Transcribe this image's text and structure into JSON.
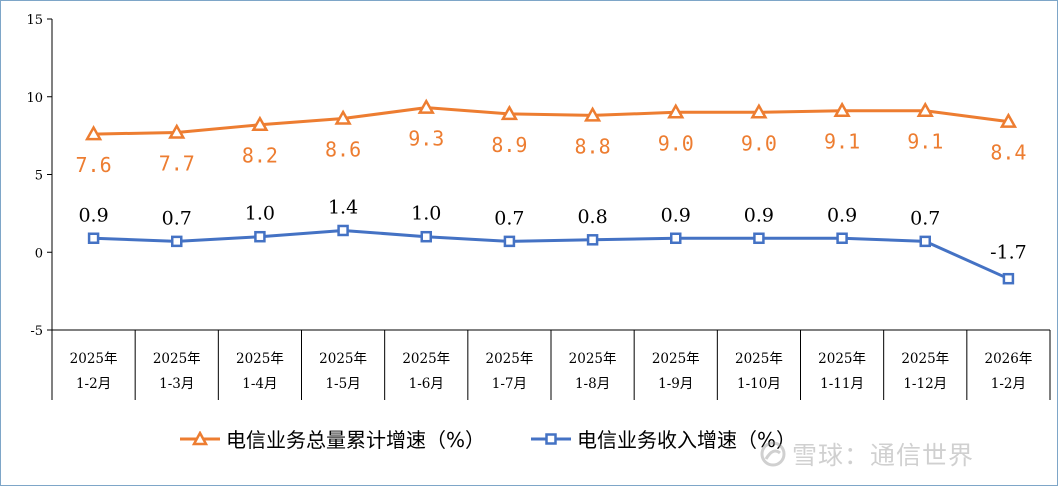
{
  "colors": {
    "series1": "#ed7d31",
    "series2": "#4472c4",
    "axis": "#000000",
    "frame": "#7ea6c8"
  },
  "legend": {
    "series1_label": "电信业务总量累计增速（%）",
    "series2_label": "电信业务收入增速（%）"
  },
  "watermark": {
    "text": "雪球：通信世界",
    "icon": "snowball-logo-icon"
  },
  "chart_data": {
    "type": "line",
    "title": "",
    "xlabel": "",
    "ylabel": "",
    "ylim": [
      -5,
      15
    ],
    "yticks": [
      -5,
      0,
      5,
      10,
      15
    ],
    "grid": false,
    "legend_position": "bottom",
    "categories": [
      [
        "2025年",
        "1-2月"
      ],
      [
        "2025年",
        "1-3月"
      ],
      [
        "2025年",
        "1-4月"
      ],
      [
        "2025年",
        "1-5月"
      ],
      [
        "2025年",
        "1-6月"
      ],
      [
        "2025年",
        "1-7月"
      ],
      [
        "2025年",
        "1-8月"
      ],
      [
        "2025年",
        "1-9月"
      ],
      [
        "2025年",
        "1-10月"
      ],
      [
        "2025年",
        "1-11月"
      ],
      [
        "2025年",
        "1-12月"
      ],
      [
        "2026年",
        "1-2月"
      ]
    ],
    "series": [
      {
        "name": "电信业务总量累计增速（%）",
        "marker": "triangle",
        "values": [
          7.6,
          7.7,
          8.2,
          8.6,
          9.3,
          8.9,
          8.8,
          9.0,
          9.0,
          9.1,
          9.1,
          8.4
        ],
        "labels": [
          "7.6",
          "7.7",
          "8.2",
          "8.6",
          "9.3",
          "8.9",
          "8.8",
          "9.0",
          "9.0",
          "9.1",
          "9.1",
          "8.4"
        ]
      },
      {
        "name": "电信业务收入增速（%）",
        "marker": "square",
        "values": [
          0.9,
          0.7,
          1.0,
          1.4,
          1.0,
          0.7,
          0.8,
          0.9,
          0.9,
          0.9,
          0.7,
          -1.7
        ],
        "labels": [
          "0.9",
          "0.7",
          "1.0",
          "1.4",
          "1.0",
          "0.7",
          "0.8",
          "0.9",
          "0.9",
          "0.9",
          "0.7",
          "-1.7"
        ]
      }
    ]
  }
}
